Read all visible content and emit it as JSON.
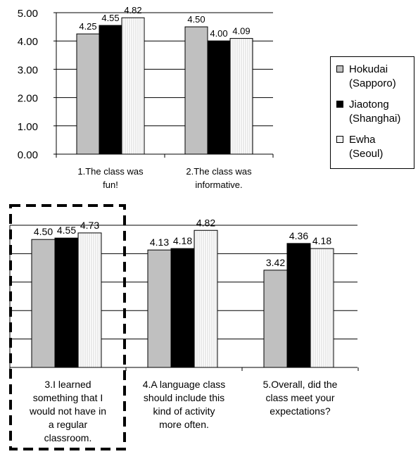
{
  "colors": {
    "hokudai": "#c0c0c0",
    "jiaotong": "#000000",
    "ewha": "#f2f2f2"
  },
  "legend": {
    "items": [
      {
        "line1": "Hokudai",
        "line2": "(Sapporo)",
        "color": "#c0c0c0"
      },
      {
        "line1": "Jiaotong",
        "line2": "(Shanghai)",
        "color": "#000000"
      },
      {
        "line1": "Ewha",
        "line2": "(Seoul)",
        "color": "#f2f2f2"
      }
    ]
  },
  "chart_data": [
    {
      "type": "bar",
      "ylim": [
        0,
        5
      ],
      "yticks": [
        "0.00",
        "1.00",
        "2.00",
        "3.00",
        "4.00",
        "5.00"
      ],
      "legend_position": "right",
      "grid": true,
      "categories": [
        [
          "1.The class was",
          "fun!"
        ],
        [
          "2.The class was",
          "informative."
        ]
      ],
      "series": [
        {
          "name": "Hokudai (Sapporo)",
          "values": [
            4.25,
            4.5
          ],
          "labels": [
            "4.25",
            "4.50"
          ]
        },
        {
          "name": "Jiaotong (Shanghai)",
          "values": [
            4.55,
            4.0
          ],
          "labels": [
            "4.55",
            "4.00"
          ]
        },
        {
          "name": "Ewha (Seoul)",
          "values": [
            4.82,
            4.09
          ],
          "labels": [
            "4.82",
            "4.09"
          ]
        }
      ]
    },
    {
      "type": "bar",
      "ylim": [
        0,
        5
      ],
      "grid": true,
      "highlighted_category": 0,
      "categories": [
        [
          "3.I learned",
          "something that I",
          "would not have in",
          "a regular",
          "classroom."
        ],
        [
          "4.A language class",
          "should include this",
          "kind of activity",
          "more often."
        ],
        [
          "5.Overall, did the",
          "class meet your",
          "expectations?"
        ]
      ],
      "series": [
        {
          "name": "Hokudai (Sapporo)",
          "values": [
            4.5,
            4.13,
            3.42
          ],
          "labels": [
            "4.50",
            "4.13",
            "3.42"
          ]
        },
        {
          "name": "Jiaotong (Shanghai)",
          "values": [
            4.55,
            4.18,
            4.36
          ],
          "labels": [
            "4.55",
            "4.18",
            "4.36"
          ]
        },
        {
          "name": "Ewha (Seoul)",
          "values": [
            4.73,
            4.82,
            4.18
          ],
          "labels": [
            "4.73",
            "4.82",
            "4.18"
          ]
        }
      ]
    }
  ]
}
